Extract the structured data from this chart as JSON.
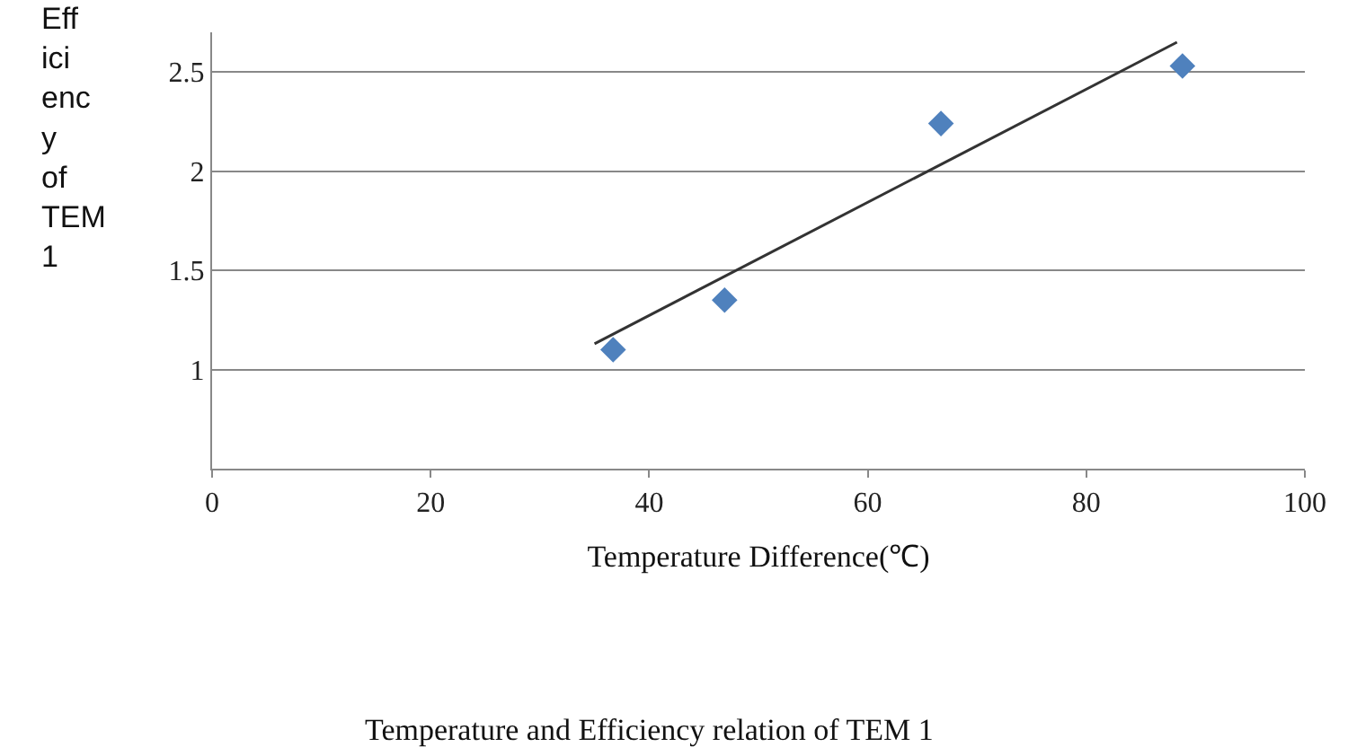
{
  "chart_data": {
    "type": "scatter",
    "title": "Temperature and Efficiency relation of TEM 1",
    "xlabel": "Temperature Difference(℃)",
    "ylabel": "Efficiency of TEM 1",
    "x": [
      36.7,
      46.9,
      66.7,
      88.8
    ],
    "series": [
      {
        "color": "#4f81bd",
        "values": [
          1.1,
          1.35,
          2.24,
          2.53
        ],
        "marker": "diamond"
      },
      {
        "type": "line",
        "color": "#333333",
        "x": [
          35,
          88.3
        ],
        "values": [
          1.13,
          2.65
        ],
        "marker": "none"
      }
    ],
    "xlim": [
      0,
      100
    ],
    "xticks": [
      0,
      20,
      40,
      60,
      80,
      100
    ],
    "ylim": [
      0.5,
      2.7
    ],
    "yticks": [
      {
        "value": 0.5,
        "label": null
      },
      1,
      1.5,
      2,
      2.5
    ],
    "grid": "y"
  }
}
